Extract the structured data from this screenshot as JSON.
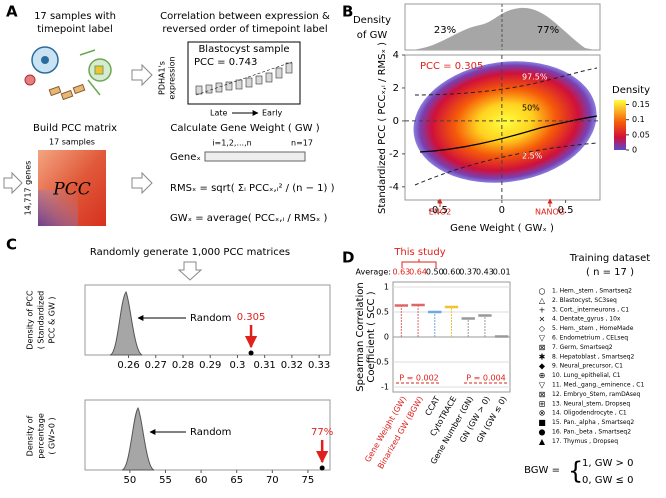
{
  "panel_a": {
    "label": "A",
    "step1": [
      "17 samples with",
      "timepoint label"
    ],
    "step2": [
      "Correlation between expression &",
      "reversed order of timepoint label"
    ],
    "sample_title": "Blastocyst sample",
    "pcc_text": "PCC = 0.743",
    "y_label": [
      "PDHA1's",
      "expression"
    ],
    "x_late": "Late",
    "x_early": "Early",
    "step3": "Build PCC matrix",
    "matrix_cols": "17 samples",
    "matrix_rows": "14,717 genes",
    "matrix_label": "PCC",
    "step4": "Calculate Gene Weight ( GW )",
    "gene": "Geneₓ",
    "index_range": "i=1,2,...,n",
    "n_samples": "n=17",
    "rms_formula": "RMSₓ = sqrt( Σᵢ PCCₓ,ᵢ² / (n − 1) )",
    "gw_formula": "GWₓ = average( PCCₓ,ᵢ / RMSₓ )"
  },
  "panel_b": {
    "label": "B",
    "density_label": [
      "Density",
      "of GW"
    ],
    "pct_left": "23%",
    "pct_right": "77%",
    "pcc": "PCC = 0.305",
    "q_high": "97.5%",
    "q_mid": "50%",
    "q_low": "2.5%",
    "gene_left": "ENO2",
    "gene_right": "NANOG"
  },
  "panel_c": {
    "label": "C",
    "heading": "Randomly generate 1,000 PCC matrices",
    "random_top": "Random",
    "random_bottom": "Random",
    "y_label_top": [
      "Density of PCC",
      "( Standardized",
      "PCC & GW )"
    ],
    "y_label_bottom": [
      "Density of",
      "percentage",
      "( GW>0 )"
    ]
  },
  "panel_d": {
    "label": "D",
    "this_study": "This study",
    "p_left": "P = 0.002",
    "p_right": "P = 0.004",
    "training_title": "Training dataset",
    "training_n": "( n = 17 )",
    "datasets": [
      "1. Hem._stem , Smartseq2",
      "2. Blastocyst, SC3seq",
      "3. Cort._interneurons , C1",
      "4. Dentate_gyrus , 10x",
      "5. Hem._stem , HomeMade",
      "6. Endometrium , CELseq",
      "7. Germ, Smartseq2",
      "8. Hepatoblast , Smartseq2",
      "9. Neural_precursor, C1",
      "10. Lung_epithelial, C1",
      "11. Med._gang._eminence , C1",
      "12. Embryo_Stem, ramDAseq",
      "13. Neural_stem, Dropseq",
      "14. Oligodendrocyte , C1",
      "15. Pan._alpha , Smartseq2",
      "16. Pan._beta , Smartseq2",
      "17. Thymus , Dropseq"
    ],
    "bgw_lhs": "BGW =",
    "bgw_case1": "1,  GW > 0",
    "bgw_case0": "0,  GW ≤ 0"
  },
  "chart_data": [
    {
      "type": "density-scatter",
      "x_label": "Gene Weight ( GWₓ )",
      "y_label": "Standardized PCC ( PCCₓ,ᵢ / RMSₓ )",
      "xlim": [
        -0.76,
        0.77
      ],
      "ylim": [
        -4.8,
        4
      ],
      "xticks": [
        -0.5,
        0,
        0.5
      ],
      "yticks": [
        -4,
        -2,
        0,
        2,
        4
      ],
      "colorbar": {
        "title": "Density",
        "lim": [
          0,
          0.165
        ],
        "ticks": [
          0,
          0.05,
          0.1,
          0.15
        ]
      }
    },
    {
      "type": "density",
      "xlim": [
        0.244,
        0.334
      ],
      "xticks": [
        0.26,
        0.27,
        0.28,
        0.29,
        0.3,
        0.31,
        0.32,
        0.33
      ],
      "observed": 0.305,
      "color": "#a6a6a6",
      "observed_color": "#e0201b"
    },
    {
      "type": "density",
      "xlim": [
        43.7,
        78.1
      ],
      "xticks": [
        50,
        55,
        60,
        65,
        70,
        75
      ],
      "observed": 77,
      "observed_label": "77%",
      "color": "#a6a6a6",
      "observed_color": "#e0201b"
    },
    {
      "type": "box-scatter",
      "y_label": [
        "Spearman Correlation",
        "Coefficient ( SCC )"
      ],
      "average_label": "Average:",
      "categories": [
        "Gene Weight (GW)",
        "Binarized GW (BGW)",
        "CCAT",
        "CytoTRACE",
        "Gene Number (GN)",
        "GN (GW > 0)",
        "GN (GW ≤ 0)"
      ],
      "values": [
        0.63,
        0.64,
        0.5,
        0.6,
        0.37,
        0.43,
        0.01
      ],
      "value_labels": [
        "0.63",
        "0.64",
        "0.50",
        "0.60",
        "0.37",
        "0.43",
        "0.01"
      ],
      "colors": [
        "#e06666",
        "#e06666",
        "#6fa8dc",
        "#f1c232",
        "#999999",
        "#999999",
        "#999999"
      ],
      "highlighted": [
        0,
        1
      ],
      "highlight_color": "#e0201b",
      "ylim": [
        -1.1,
        1.1
      ],
      "yticks": [
        -1,
        -0.5,
        0,
        0.5,
        1
      ],
      "grid": true
    }
  ]
}
